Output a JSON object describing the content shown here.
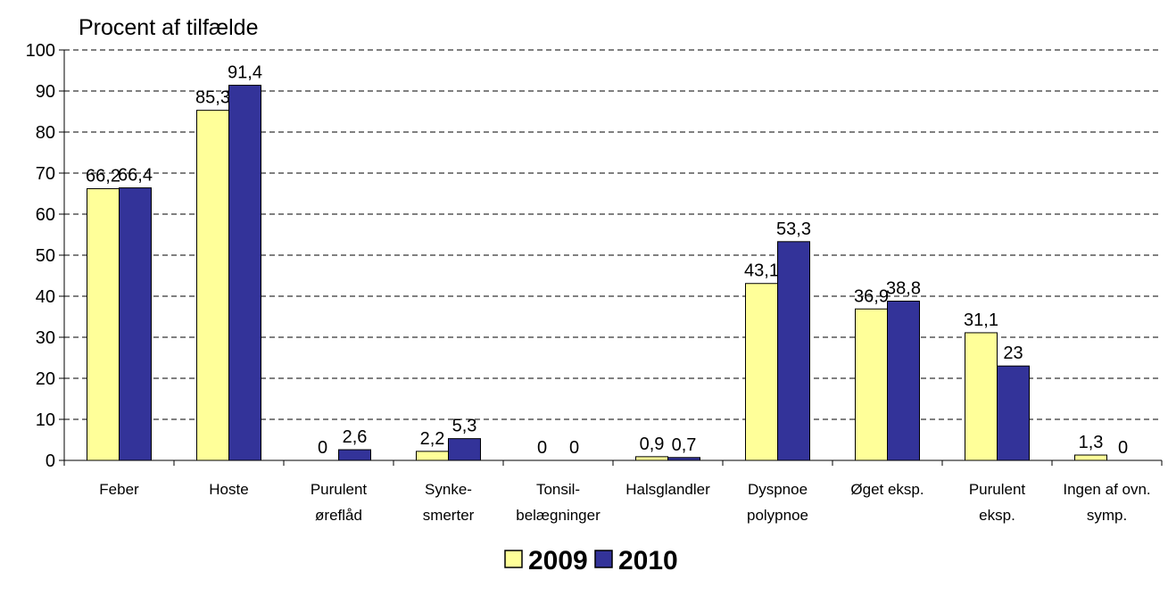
{
  "chart_data": {
    "type": "bar",
    "ylabel": "Procent af tilfælde",
    "ylim": [
      0,
      100
    ],
    "yticks": [
      0,
      10,
      20,
      30,
      40,
      50,
      60,
      70,
      80,
      90,
      100
    ],
    "grid": true,
    "legend_position": "bottom",
    "categories": [
      [
        "Feber"
      ],
      [
        "Hoste"
      ],
      [
        "Purulent",
        "øreflåd"
      ],
      [
        "Synke-",
        "smerter"
      ],
      [
        "Tonsil-",
        "belægninger"
      ],
      [
        "Halsglandler"
      ],
      [
        "Dyspnoe",
        "polypnoe"
      ],
      [
        "Øget eksp."
      ],
      [
        "Purulent",
        "eksp."
      ],
      [
        "Ingen af ovn.",
        "symp."
      ]
    ],
    "series": [
      {
        "name": "2009",
        "color": "#ffff99",
        "values": [
          66.2,
          85.3,
          0,
          2.2,
          0,
          0.9,
          43.1,
          36.9,
          31.1,
          1.3
        ],
        "labels": [
          "66,2",
          "85,3",
          "0",
          "2,2",
          "0",
          "0,9",
          "43,1",
          "36,9",
          "31,1",
          "1,3"
        ]
      },
      {
        "name": "2010",
        "color": "#333399",
        "values": [
          66.4,
          91.4,
          2.6,
          5.3,
          0,
          0.7,
          53.3,
          38.8,
          23,
          0
        ],
        "labels": [
          "66,4",
          "91,4",
          "2,6",
          "5,3",
          "0",
          "0,7",
          "53,3",
          "38,8",
          "23",
          "0"
        ]
      }
    ]
  }
}
